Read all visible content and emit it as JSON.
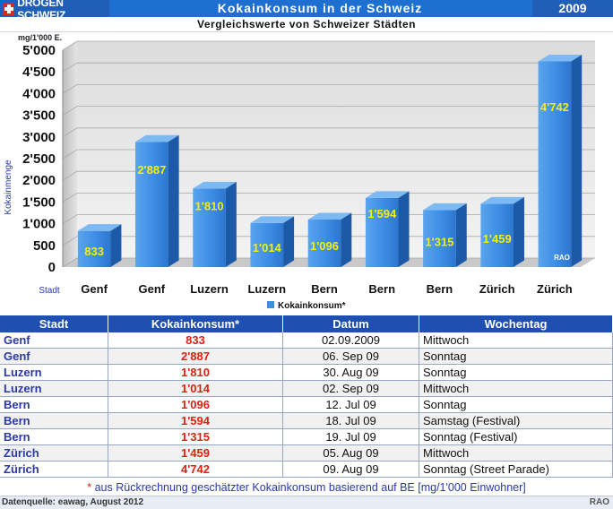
{
  "header": {
    "brand": "DROGEN SCHWEIZ",
    "title": "Kokainkonsum in der Schweiz",
    "year": "2009",
    "subtitle": "Vergleichswerte von Schweizer Städten"
  },
  "chart_data": {
    "type": "bar",
    "unit_label": "mg/1'000 E.",
    "ylabel": "Kokainmenge",
    "xlabel": "Stadt",
    "categories": [
      "Genf",
      "Genf",
      "Luzern",
      "Luzern",
      "Bern",
      "Bern",
      "Bern",
      "Zürich",
      "Zürich"
    ],
    "series": [
      {
        "name": "Kokainkonsum*",
        "values": [
          833,
          2887,
          1810,
          1014,
          1096,
          1594,
          1315,
          1459,
          4742
        ]
      }
    ],
    "value_labels": [
      "833",
      "2'887",
      "1'810",
      "1'014",
      "1'096",
      "1'594",
      "1'315",
      "1'459",
      "4'742"
    ],
    "y_ticks": [
      "0",
      "500",
      "1'000",
      "1'500",
      "2'000",
      "2'500",
      "3'000",
      "3'500",
      "4'000",
      "4'500",
      "5'000"
    ],
    "ylim": [
      0,
      5000
    ],
    "grid": true,
    "legend": "bottom",
    "watermark": "RAO",
    "colors": {
      "bar": "#3d8de6",
      "bar_top": "#7db9f2",
      "bar_side": "#1c5aa8",
      "label": "#f6f000"
    }
  },
  "table": {
    "headers": [
      "Stadt",
      "Kokainkonsum*",
      "Datum",
      "Wochentag"
    ],
    "rows": [
      [
        "Genf",
        "833",
        "02.09.2009",
        " Mittwoch"
      ],
      [
        "Genf",
        "2'887",
        "06. Sep 09",
        "Sonntag"
      ],
      [
        "Luzern",
        "1'810",
        "30. Aug 09",
        "Sonntag"
      ],
      [
        "Luzern",
        "1'014",
        "02. Sep 09",
        "Mittwoch"
      ],
      [
        "Bern",
        "1'096",
        "12. Jul 09",
        "Sonntag"
      ],
      [
        "Bern",
        "1'594",
        "18. Jul 09",
        "Samstag (Festival)"
      ],
      [
        "Bern",
        "1'315",
        "19. Jul 09",
        "Sonntag (Festival)"
      ],
      [
        "Zürich",
        "1'459",
        "05. Aug 09",
        "Mittwoch"
      ],
      [
        "Zürich",
        "4'742",
        "09. Aug 09",
        "Sonntag (Street Parade)"
      ]
    ]
  },
  "note": {
    "star": "*",
    "text": "aus Rückrechnung geschätzter Kokainkonsum basierend auf BE [mg/1'000 Einwohner]"
  },
  "footer": {
    "source": "Datenquelle: eawag, August 2012",
    "credit": "RAO"
  }
}
